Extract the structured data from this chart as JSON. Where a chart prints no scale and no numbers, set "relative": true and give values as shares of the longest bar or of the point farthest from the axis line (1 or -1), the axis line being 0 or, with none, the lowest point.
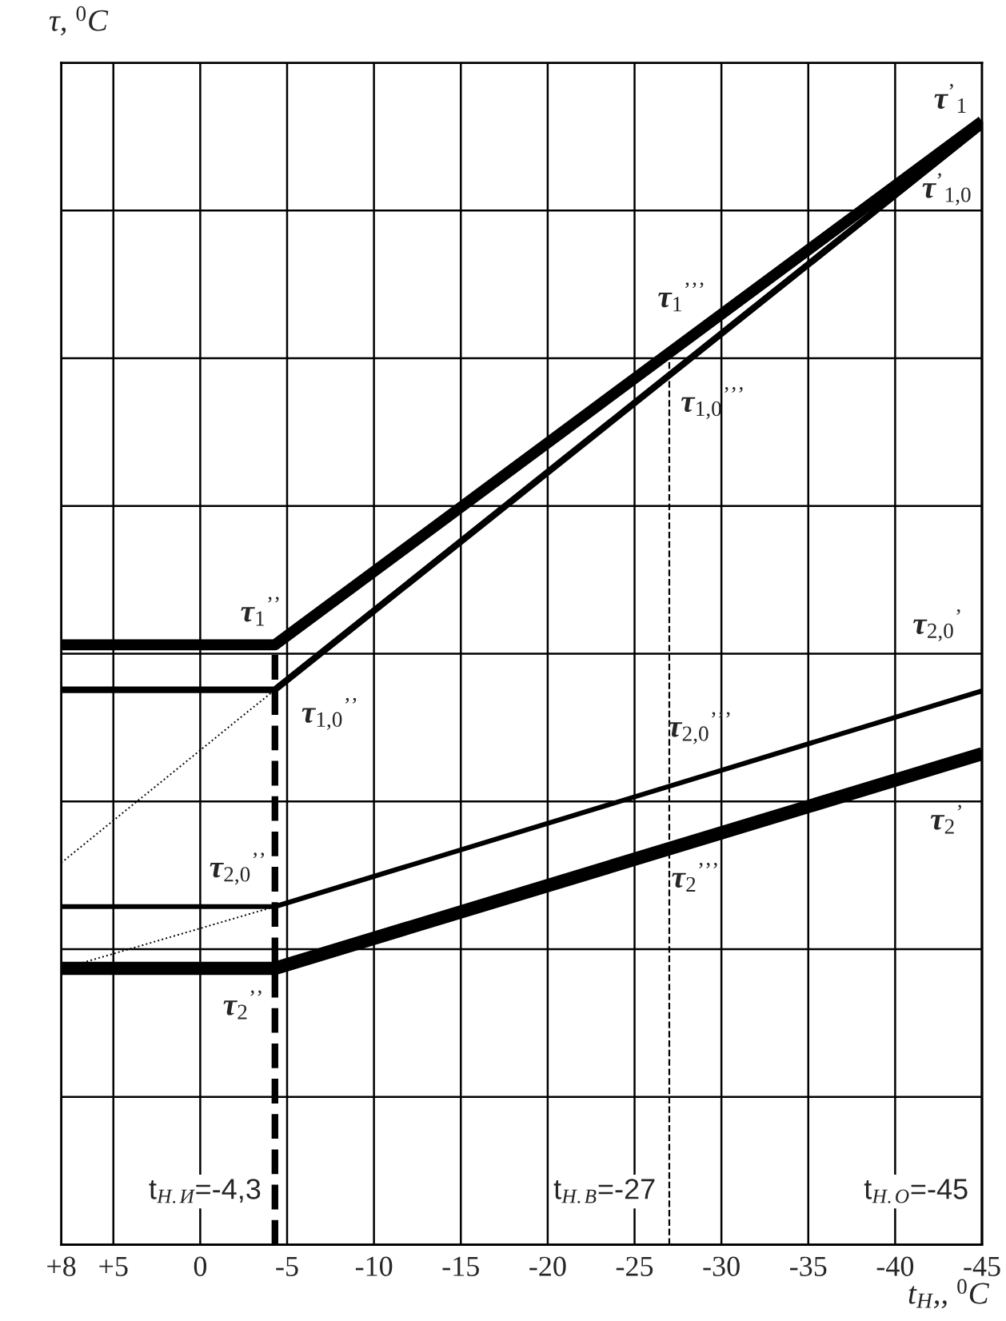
{
  "chart_data": {
    "type": "line",
    "relative": true,
    "xlabel": "t$_{Н}$,, $^{0}$C",
    "ylabel": "τ, $^{0}$C",
    "xlim": [
      8,
      -45
    ],
    "xticks": [
      {
        "value": 8,
        "label": "+8"
      },
      {
        "value": 5,
        "label": "+5"
      },
      0,
      -5,
      -10,
      -15,
      -20,
      -25,
      -30,
      -35,
      -40,
      -45
    ],
    "tick_labels": "x",
    "grid": true,
    "series": [
      {
        "color": "#000000",
        "x": [
          8,
          -4.3,
          -45
        ],
        "values": [
          0.534,
          0.534,
          1.0
        ]
      },
      {
        "color": "#000000",
        "x": [
          8,
          -4.3,
          -45
        ],
        "values": [
          0.494,
          0.494,
          0.996
        ]
      },
      {
        "color": "#000000",
        "x": [
          8,
          -4.3
        ],
        "values": [
          0.34,
          0.494
        ],
        "line_style": "dotted"
      },
      {
        "color": "#000000",
        "x": [
          8,
          -4.3,
          -45
        ],
        "values": [
          0.301,
          0.301,
          0.493
        ]
      },
      {
        "color": "#000000",
        "x": [
          7,
          -4.3
        ],
        "values": [
          0.25,
          0.301
        ],
        "line_style": "dotted"
      },
      {
        "color": "#000000",
        "x": [
          8,
          -4.3,
          -45
        ],
        "values": [
          0.246,
          0.246,
          0.437
        ]
      }
    ],
    "ref_lines": [
      {
        "axis": "x",
        "value": -4.3,
        "label": "t$_{Н.И}$=-4,3",
        "color": "#000000",
        "line_style": "dashed"
      },
      {
        "axis": "x",
        "value": -27,
        "label": "t$_{Н.В}$=-27",
        "color": "#000000",
        "line_style": "dashed"
      },
      {
        "axis": "x",
        "value": -45,
        "label": "t$_{Н.О}$=-45",
        "color": "#000000",
        "line_style": "solid"
      }
    ],
    "annotations": [
      "τ$^{’}$$_{1}$",
      "τ$^{’}$$_{1,0}$",
      "τ$_{1}$$^{’’’}$",
      "τ$_{1,0}$$^{’’’}$",
      "τ$_{1}$$^{’’}$",
      "τ$_{1,0}$$^{’’}$",
      "τ$_{2,0}$$^{’’}$",
      "τ$_{2}$$^{’’}$",
      "τ$_{2,0}$$^{’}$",
      "τ$_{2,0}$$^{’’’}$",
      "τ$_{2}$$^{’’’}$",
      "τ$_{2}$$^{’}$"
    ]
  }
}
